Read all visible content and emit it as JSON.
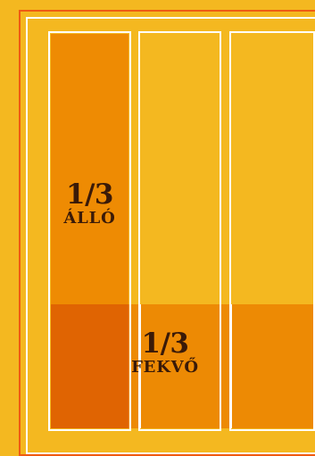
{
  "diagram": {
    "vertical_label": {
      "fraction": "1/3",
      "word": "ÁLLÓ"
    },
    "horizontal_label": {
      "fraction": "1/3",
      "word": "FEKVŐ"
    },
    "colors": {
      "background": "#f4b820",
      "vertical_third": "#ee8b03",
      "horizontal_third": "#ed8a04",
      "overlap": "#e06402",
      "frame_red": "#ef5b12",
      "lines": "#ffffff",
      "text": "#3a1a08"
    }
  }
}
